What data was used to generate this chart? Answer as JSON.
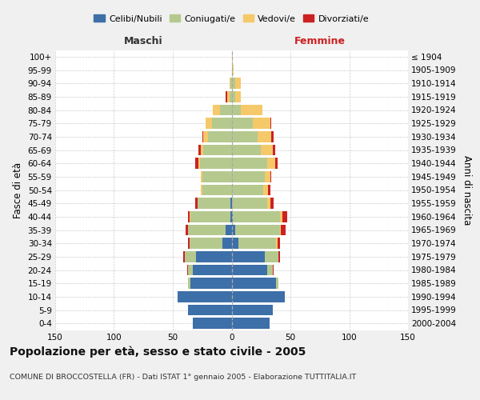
{
  "age_groups": [
    "0-4",
    "5-9",
    "10-14",
    "15-19",
    "20-24",
    "25-29",
    "30-34",
    "35-39",
    "40-44",
    "45-49",
    "50-54",
    "55-59",
    "60-64",
    "65-69",
    "70-74",
    "75-79",
    "80-84",
    "85-89",
    "90-94",
    "95-99",
    "100+"
  ],
  "birth_years": [
    "2000-2004",
    "1995-1999",
    "1990-1994",
    "1985-1989",
    "1980-1984",
    "1975-1979",
    "1970-1974",
    "1965-1969",
    "1960-1964",
    "1955-1959",
    "1950-1954",
    "1945-1949",
    "1940-1944",
    "1935-1939",
    "1930-1934",
    "1925-1929",
    "1920-1924",
    "1915-1919",
    "1910-1914",
    "1905-1909",
    "≤ 1904"
  ],
  "colors": {
    "celibe": "#3d6fa8",
    "coniugato": "#b5c98e",
    "vedovo": "#f5c96a",
    "divorziato": "#cc2222"
  },
  "males": {
    "celibe": [
      33,
      37,
      46,
      35,
      33,
      30,
      8,
      5,
      1,
      1,
      0,
      0,
      0,
      0,
      0,
      0,
      0,
      0,
      0,
      0,
      0
    ],
    "coniugato": [
      0,
      0,
      0,
      2,
      4,
      10,
      28,
      32,
      34,
      28,
      25,
      25,
      27,
      24,
      20,
      17,
      10,
      2,
      1,
      0,
      0
    ],
    "vedovo": [
      0,
      0,
      0,
      0,
      0,
      0,
      0,
      0,
      1,
      0,
      1,
      1,
      1,
      2,
      4,
      5,
      6,
      2,
      1,
      0,
      0
    ],
    "divorziato": [
      0,
      0,
      0,
      0,
      1,
      1,
      1,
      2,
      1,
      2,
      0,
      0,
      3,
      2,
      1,
      0,
      0,
      1,
      0,
      0,
      0
    ]
  },
  "females": {
    "nubile": [
      32,
      35,
      45,
      38,
      30,
      28,
      6,
      3,
      1,
      0,
      0,
      0,
      0,
      0,
      0,
      0,
      0,
      0,
      0,
      0,
      0
    ],
    "coniugata": [
      0,
      0,
      0,
      2,
      5,
      12,
      32,
      38,
      40,
      30,
      27,
      28,
      30,
      25,
      22,
      18,
      8,
      3,
      3,
      1,
      0
    ],
    "vedova": [
      0,
      0,
      0,
      0,
      0,
      0,
      1,
      1,
      2,
      3,
      4,
      5,
      7,
      10,
      12,
      15,
      18,
      5,
      5,
      1,
      1
    ],
    "divorziata": [
      0,
      0,
      0,
      0,
      1,
      1,
      2,
      4,
      4,
      3,
      2,
      1,
      2,
      2,
      2,
      1,
      0,
      0,
      0,
      0,
      0
    ]
  },
  "xlim": 150,
  "title": "Popolazione per età, sesso e stato civile - 2005",
  "subtitle": "COMUNE DI BROCCOSTELLA (FR) - Dati ISTAT 1° gennaio 2005 - Elaborazione TUTTITALIA.IT",
  "ylabel_left": "Fasce di età",
  "ylabel_right": "Anni di nascita",
  "xlabel_males": "Maschi",
  "xlabel_females": "Femmine",
  "legend_labels": [
    "Celibi/Nubili",
    "Coniugati/e",
    "Vedovi/e",
    "Divorziati/e"
  ],
  "bg_color": "#f0f0f0",
  "plot_bg_color": "#ffffff"
}
